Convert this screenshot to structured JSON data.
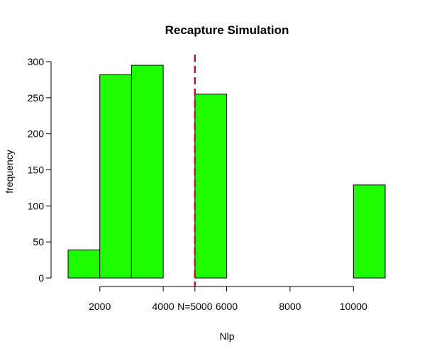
{
  "chart_data": {
    "type": "bar",
    "title": "Recapture Simulation",
    "xlabel": "Nlp",
    "ylabel": "frequency",
    "bin_edges": [
      1000,
      2000,
      3000,
      4000,
      5000,
      6000,
      7000,
      8000,
      9000,
      10000,
      11000
    ],
    "counts": [
      39,
      282,
      295,
      0,
      255,
      0,
      0,
      0,
      0,
      129
    ],
    "xlim": [
      1000,
      11000
    ],
    "ylim": [
      0,
      300
    ],
    "x_ticks": [
      2000,
      4000,
      6000,
      8000,
      10000
    ],
    "y_ticks": [
      0,
      50,
      100,
      150,
      200,
      250,
      300
    ],
    "bar_color": "#1dff00",
    "bar_edge_color": "#000000",
    "reference_line": {
      "x": 5000,
      "label": "N=5000",
      "color": "#c8102e",
      "style": "dashed"
    },
    "grid": false
  }
}
